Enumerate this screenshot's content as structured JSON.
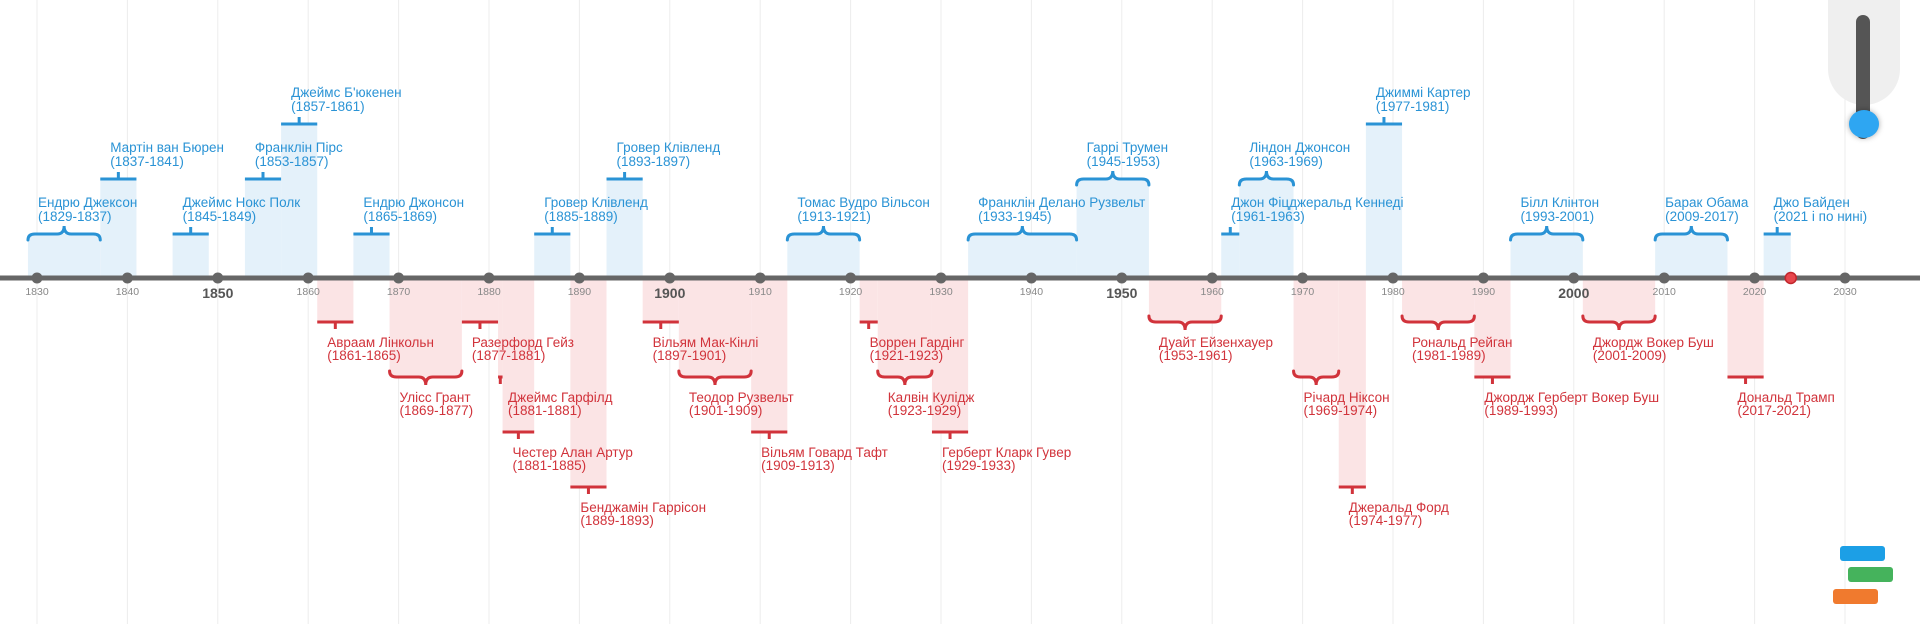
{
  "axis": {
    "years": [
      1830,
      1840,
      1850,
      1860,
      1870,
      1880,
      1890,
      1900,
      1910,
      1920,
      1930,
      1940,
      1950,
      1960,
      1970,
      1980,
      1990,
      2000,
      2010,
      2020,
      2030
    ],
    "major_years": [
      1850,
      1900,
      1950,
      2000
    ],
    "current_year": 2024
  },
  "colors": {
    "blue": "#2a93d5",
    "blue_fill": "#e4f1fa",
    "red": "#d1333b",
    "red_fill": "#fbe4e5",
    "axis": "#666666"
  },
  "presidents": [
    {
      "name": "Ендрю Джексон",
      "years": "(1829-1837)",
      "start": 1829,
      "end": 1837,
      "side": "top"
    },
    {
      "name": "Мартін ван Бюрен",
      "years": "(1837-1841)",
      "start": 1837,
      "end": 1841,
      "side": "top"
    },
    {
      "name": "Джеймс Нокс Полк",
      "years": "(1845-1849)",
      "start": 1845,
      "end": 1849,
      "side": "top"
    },
    {
      "name": "Франклін Пірс",
      "years": "(1853-1857)",
      "start": 1853,
      "end": 1857,
      "side": "top"
    },
    {
      "name": "Джеймс Б'юкенен",
      "years": "(1857-1861)",
      "start": 1857,
      "end": 1861,
      "side": "top"
    },
    {
      "name": "Авраам Лінкольн",
      "years": "(1861-1865)",
      "start": 1861,
      "end": 1865,
      "side": "bottom"
    },
    {
      "name": "Ендрю Джонсон",
      "years": "(1865-1869)",
      "start": 1865,
      "end": 1869,
      "side": "top"
    },
    {
      "name": "Улісс Грант",
      "years": "(1869-1877)",
      "start": 1869,
      "end": 1877,
      "side": "bottom"
    },
    {
      "name": "Разерфорд Гейз",
      "years": "(1877-1881)",
      "start": 1877,
      "end": 1881,
      "side": "bottom"
    },
    {
      "name": "Джеймс Гарфілд",
      "years": "(1881-1881)",
      "start": 1881,
      "end": 1881.5,
      "side": "bottom"
    },
    {
      "name": "Честер Алан Артур",
      "years": "(1881-1885)",
      "start": 1881.5,
      "end": 1885,
      "side": "bottom"
    },
    {
      "name": "Гровер Клівленд",
      "years": "(1885-1889)",
      "start": 1885,
      "end": 1889,
      "side": "top"
    },
    {
      "name": "Бенджамін Гаррісон",
      "years": "(1889-1893)",
      "start": 1889,
      "end": 1893,
      "side": "bottom"
    },
    {
      "name": "Гровер Клівленд",
      "years": "(1893-1897)",
      "start": 1893,
      "end": 1897,
      "side": "top"
    },
    {
      "name": "Вільям Мак-Кінлі",
      "years": "(1897-1901)",
      "start": 1897,
      "end": 1901,
      "side": "bottom"
    },
    {
      "name": "Теодор Рузвельт",
      "years": "(1901-1909)",
      "start": 1901,
      "end": 1909,
      "side": "bottom"
    },
    {
      "name": "Вільям Говард Тафт",
      "years": "(1909-1913)",
      "start": 1909,
      "end": 1913,
      "side": "bottom"
    },
    {
      "name": "Томас Вудро Вільсон",
      "years": "(1913-1921)",
      "start": 1913,
      "end": 1921,
      "side": "top"
    },
    {
      "name": "Воррен Гардінг",
      "years": "(1921-1923)",
      "start": 1921,
      "end": 1923,
      "side": "bottom"
    },
    {
      "name": "Калвін Кулідж",
      "years": "(1923-1929)",
      "start": 1923,
      "end": 1929,
      "side": "bottom"
    },
    {
      "name": "Герберт Кларк Гувер",
      "years": "(1929-1933)",
      "start": 1929,
      "end": 1933,
      "side": "bottom"
    },
    {
      "name": "Франклін Делано Рузвельт",
      "years": "(1933-1945)",
      "start": 1933,
      "end": 1945,
      "side": "top"
    },
    {
      "name": "Гаррі Трумен",
      "years": "(1945-1953)",
      "start": 1945,
      "end": 1953,
      "side": "top"
    },
    {
      "name": "Дуайт Ейзенхауер",
      "years": "(1953-1961)",
      "start": 1953,
      "end": 1961,
      "side": "bottom"
    },
    {
      "name": "Джон Фіцджеральд Кеннеді",
      "years": "(1961-1963)",
      "start": 1961,
      "end": 1963,
      "side": "top"
    },
    {
      "name": "Ліндон Джонсон",
      "years": "(1963-1969)",
      "start": 1963,
      "end": 1969,
      "side": "top"
    },
    {
      "name": "Річард Ніксон",
      "years": "(1969-1974)",
      "start": 1969,
      "end": 1974,
      "side": "bottom"
    },
    {
      "name": "Джеральд Форд",
      "years": "(1974-1977)",
      "start": 1974,
      "end": 1977,
      "side": "bottom"
    },
    {
      "name": "Джиммі Картер",
      "years": "(1977-1981)",
      "start": 1977,
      "end": 1981,
      "side": "top"
    },
    {
      "name": "Рональд Рейган",
      "years": "(1981-1989)",
      "start": 1981,
      "end": 1989,
      "side": "bottom"
    },
    {
      "name": "Джордж Герберт Вокер Буш",
      "years": "(1989-1993)",
      "start": 1989,
      "end": 1993,
      "side": "bottom"
    },
    {
      "name": "Білл Клінтон",
      "years": "(1993-2001)",
      "start": 1993,
      "end": 2001,
      "side": "top"
    },
    {
      "name": "Джордж Вокер Буш",
      "years": "(2001-2009)",
      "start": 2001,
      "end": 2009,
      "side": "bottom"
    },
    {
      "name": "Барак Обама",
      "years": "(2009-2017)",
      "start": 2009,
      "end": 2017,
      "side": "top"
    },
    {
      "name": "Дональд Трамп",
      "years": "(2017-2021)",
      "start": 2017,
      "end": 2021,
      "side": "bottom"
    },
    {
      "name": "Джо Байден",
      "years": "(2021 і по нині)",
      "start": 2021,
      "end": 2024,
      "side": "top"
    }
  ]
}
